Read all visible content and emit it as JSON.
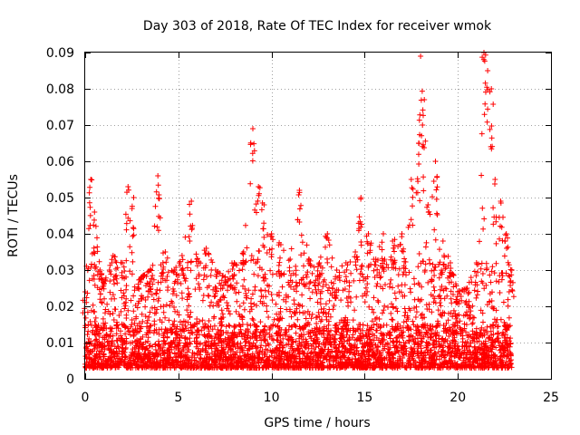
{
  "chart_data": {
    "type": "scatter",
    "title": "Day 303 of 2018, Rate Of TEC Index for receiver wmok",
    "xlabel": "GPS time / hours",
    "ylabel": "ROTI / TECUs",
    "xlim": [
      0,
      25
    ],
    "ylim": [
      0,
      0.09
    ],
    "xticks": [
      0,
      5,
      10,
      15,
      20,
      25
    ],
    "yticks": [
      0,
      0.01,
      0.02,
      0.03,
      0.04,
      0.05,
      0.06,
      0.07,
      0.08,
      0.09
    ],
    "xtick_labels": [
      "0",
      "5",
      "10",
      "15",
      "20",
      "25"
    ],
    "ytick_labels": [
      "0",
      "0.01",
      "0.02",
      "0.03",
      "0.04",
      "0.05",
      "0.06",
      "0.07",
      "0.08",
      "0.09"
    ],
    "grid": true,
    "marker": "plus",
    "color": "#ff0000",
    "x_extent": [
      0,
      22.9
    ],
    "envelope": [
      [
        0.0,
        0.024
      ],
      [
        0.3,
        0.055
      ],
      [
        0.5,
        0.046
      ],
      [
        0.8,
        0.03
      ],
      [
        1.0,
        0.026
      ],
      [
        1.5,
        0.034
      ],
      [
        2.0,
        0.032
      ],
      [
        2.3,
        0.053
      ],
      [
        2.6,
        0.05
      ],
      [
        3.0,
        0.028
      ],
      [
        3.5,
        0.03
      ],
      [
        3.9,
        0.056
      ],
      [
        4.3,
        0.035
      ],
      [
        4.8,
        0.03
      ],
      [
        5.2,
        0.034
      ],
      [
        5.7,
        0.049
      ],
      [
        6.0,
        0.033
      ],
      [
        6.5,
        0.036
      ],
      [
        7.0,
        0.03
      ],
      [
        7.5,
        0.028
      ],
      [
        8.0,
        0.032
      ],
      [
        8.5,
        0.035
      ],
      [
        9.0,
        0.069
      ],
      [
        9.3,
        0.053
      ],
      [
        9.6,
        0.048
      ],
      [
        10.0,
        0.04
      ],
      [
        10.5,
        0.037
      ],
      [
        11.0,
        0.033
      ],
      [
        11.5,
        0.052
      ],
      [
        12.0,
        0.033
      ],
      [
        12.5,
        0.031
      ],
      [
        13.0,
        0.04
      ],
      [
        13.5,
        0.03
      ],
      [
        14.0,
        0.032
      ],
      [
        14.5,
        0.035
      ],
      [
        14.8,
        0.05
      ],
      [
        15.2,
        0.04
      ],
      [
        15.6,
        0.033
      ],
      [
        16.0,
        0.04
      ],
      [
        16.5,
        0.038
      ],
      [
        17.0,
        0.04
      ],
      [
        17.5,
        0.055
      ],
      [
        17.9,
        0.065
      ],
      [
        18.0,
        0.089
      ],
      [
        18.2,
        0.077
      ],
      [
        18.4,
        0.048
      ],
      [
        18.8,
        0.06
      ],
      [
        19.2,
        0.038
      ],
      [
        19.6,
        0.032
      ],
      [
        20.0,
        0.024
      ],
      [
        20.5,
        0.025
      ],
      [
        21.0,
        0.032
      ],
      [
        21.4,
        0.09
      ],
      [
        21.6,
        0.085
      ],
      [
        21.8,
        0.08
      ],
      [
        22.0,
        0.055
      ],
      [
        22.3,
        0.049
      ],
      [
        22.6,
        0.04
      ],
      [
        22.9,
        0.03
      ]
    ]
  }
}
